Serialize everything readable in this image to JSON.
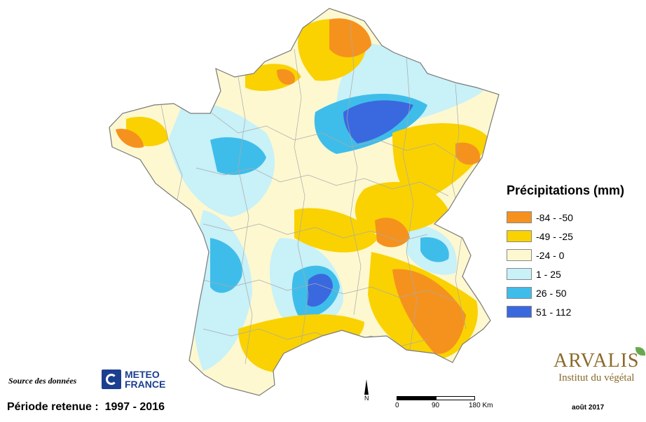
{
  "legend": {
    "title": "Précipitations (mm)",
    "classes": [
      {
        "label": "-84 - -50",
        "color": "#f5921e"
      },
      {
        "label": "-49 - -25",
        "color": "#fad201"
      },
      {
        "label": "-24 - 0",
        "color": "#fdf8d0"
      },
      {
        "label": "1 - 25",
        "color": "#c8f1f8"
      },
      {
        "label": "26 - 50",
        "color": "#3fbdea"
      },
      {
        "label": "51 - 112",
        "color": "#3a68df"
      }
    ]
  },
  "source_label": "Source des données",
  "provider_logo": {
    "line1": "METEO",
    "line2": "FRANCE"
  },
  "period": "Période retenue :  1997 - 2016",
  "scale": {
    "ticks": [
      "0",
      "90",
      "180 Km"
    ]
  },
  "north_label": "N",
  "branding": {
    "name": "ARVALIS",
    "subtitle": "Institut du végétal"
  },
  "date": "août 2017"
}
